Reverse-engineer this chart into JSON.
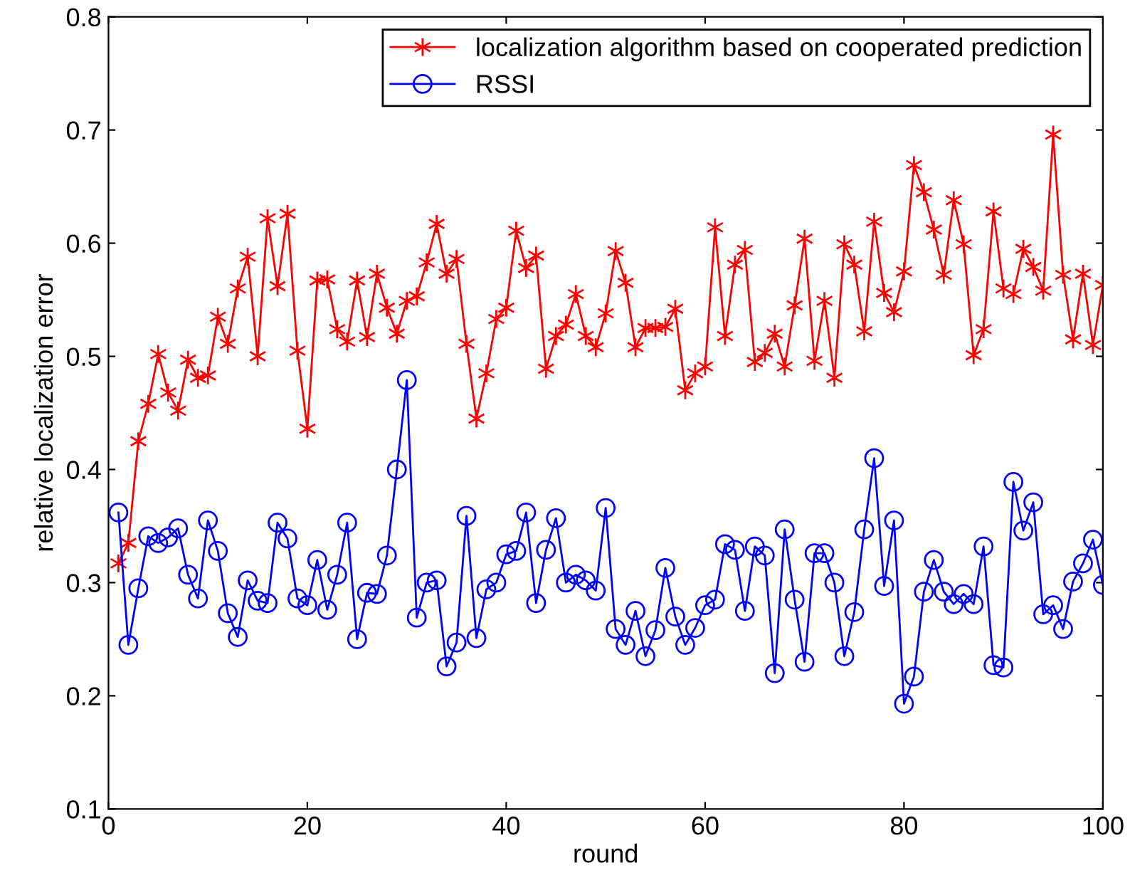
{
  "chart_data": {
    "type": "line",
    "xlabel": "round",
    "ylabel": "relative localization error",
    "xlim": [
      0,
      100
    ],
    "ylim": [
      0.1,
      0.8
    ],
    "xticks": [
      0,
      20,
      40,
      60,
      80,
      100
    ],
    "yticks": [
      0.1,
      0.2,
      0.3,
      0.4,
      0.5,
      0.6,
      0.7,
      0.8
    ],
    "x": [
      1,
      2,
      3,
      4,
      5,
      6,
      7,
      8,
      9,
      10,
      11,
      12,
      13,
      14,
      15,
      16,
      17,
      18,
      19,
      20,
      21,
      22,
      23,
      24,
      25,
      26,
      27,
      28,
      29,
      30,
      31,
      32,
      33,
      34,
      35,
      36,
      37,
      38,
      39,
      40,
      41,
      42,
      43,
      44,
      45,
      46,
      47,
      48,
      49,
      50,
      51,
      52,
      53,
      54,
      55,
      56,
      57,
      58,
      59,
      60,
      61,
      62,
      63,
      64,
      65,
      66,
      67,
      68,
      69,
      70,
      71,
      72,
      73,
      74,
      75,
      76,
      77,
      78,
      79,
      80,
      81,
      82,
      83,
      84,
      85,
      86,
      87,
      88,
      89,
      90,
      91,
      92,
      93,
      94,
      95,
      96,
      97,
      98,
      99,
      100
    ],
    "grid": false,
    "legend": "top right",
    "series": [
      {
        "name": "localization algorithm based on cooperated prediction",
        "color": "#ff0000",
        "marker": "cross",
        "values": [
          0.317,
          0.335,
          0.425,
          0.458,
          0.502,
          0.468,
          0.452,
          0.497,
          0.481,
          0.483,
          0.535,
          0.511,
          0.56,
          0.588,
          0.5,
          0.622,
          0.562,
          0.626,
          0.505,
          0.436,
          0.567,
          0.568,
          0.524,
          0.513,
          0.567,
          0.517,
          0.573,
          0.543,
          0.52,
          0.549,
          0.553,
          0.583,
          0.617,
          0.573,
          0.586,
          0.511,
          0.445,
          0.485,
          0.533,
          0.543,
          0.611,
          0.578,
          0.589,
          0.489,
          0.518,
          0.528,
          0.555,
          0.518,
          0.508,
          0.538,
          0.593,
          0.565,
          0.508,
          0.525,
          0.525,
          0.526,
          0.542,
          0.47,
          0.485,
          0.491,
          0.614,
          0.518,
          0.581,
          0.594,
          0.495,
          0.503,
          0.52,
          0.491,
          0.545,
          0.604,
          0.496,
          0.549,
          0.481,
          0.599,
          0.581,
          0.522,
          0.619,
          0.556,
          0.539,
          0.575,
          0.669,
          0.645,
          0.612,
          0.572,
          0.638,
          0.599,
          0.501,
          0.524,
          0.628,
          0.56,
          0.555,
          0.595,
          0.579,
          0.558,
          0.696,
          0.572,
          0.515,
          0.573,
          0.51,
          0.563
        ]
      },
      {
        "name": "RSSI",
        "color": "#0000ff",
        "marker": "circle",
        "values": [
          0.362,
          0.245,
          0.295,
          0.341,
          0.335,
          0.34,
          0.348,
          0.307,
          0.286,
          0.355,
          0.328,
          0.273,
          0.252,
          0.302,
          0.284,
          0.282,
          0.353,
          0.339,
          0.286,
          0.28,
          0.32,
          0.276,
          0.307,
          0.353,
          0.25,
          0.291,
          0.29,
          0.324,
          0.4,
          0.479,
          0.269,
          0.3,
          0.302,
          0.226,
          0.247,
          0.359,
          0.251,
          0.294,
          0.3,
          0.325,
          0.328,
          0.362,
          0.282,
          0.329,
          0.357,
          0.3,
          0.307,
          0.302,
          0.293,
          0.366,
          0.259,
          0.245,
          0.275,
          0.235,
          0.258,
          0.313,
          0.27,
          0.245,
          0.26,
          0.28,
          0.285,
          0.334,
          0.329,
          0.275,
          0.332,
          0.324,
          0.22,
          0.347,
          0.285,
          0.23,
          0.326,
          0.326,
          0.3,
          0.235,
          0.274,
          0.347,
          0.41,
          0.297,
          0.355,
          0.193,
          0.217,
          0.292,
          0.32,
          0.292,
          0.281,
          0.29,
          0.281,
          0.332,
          0.227,
          0.225,
          0.389,
          0.346,
          0.371,
          0.272,
          0.28,
          0.259,
          0.301,
          0.317,
          0.338,
          0.298
        ]
      }
    ]
  }
}
